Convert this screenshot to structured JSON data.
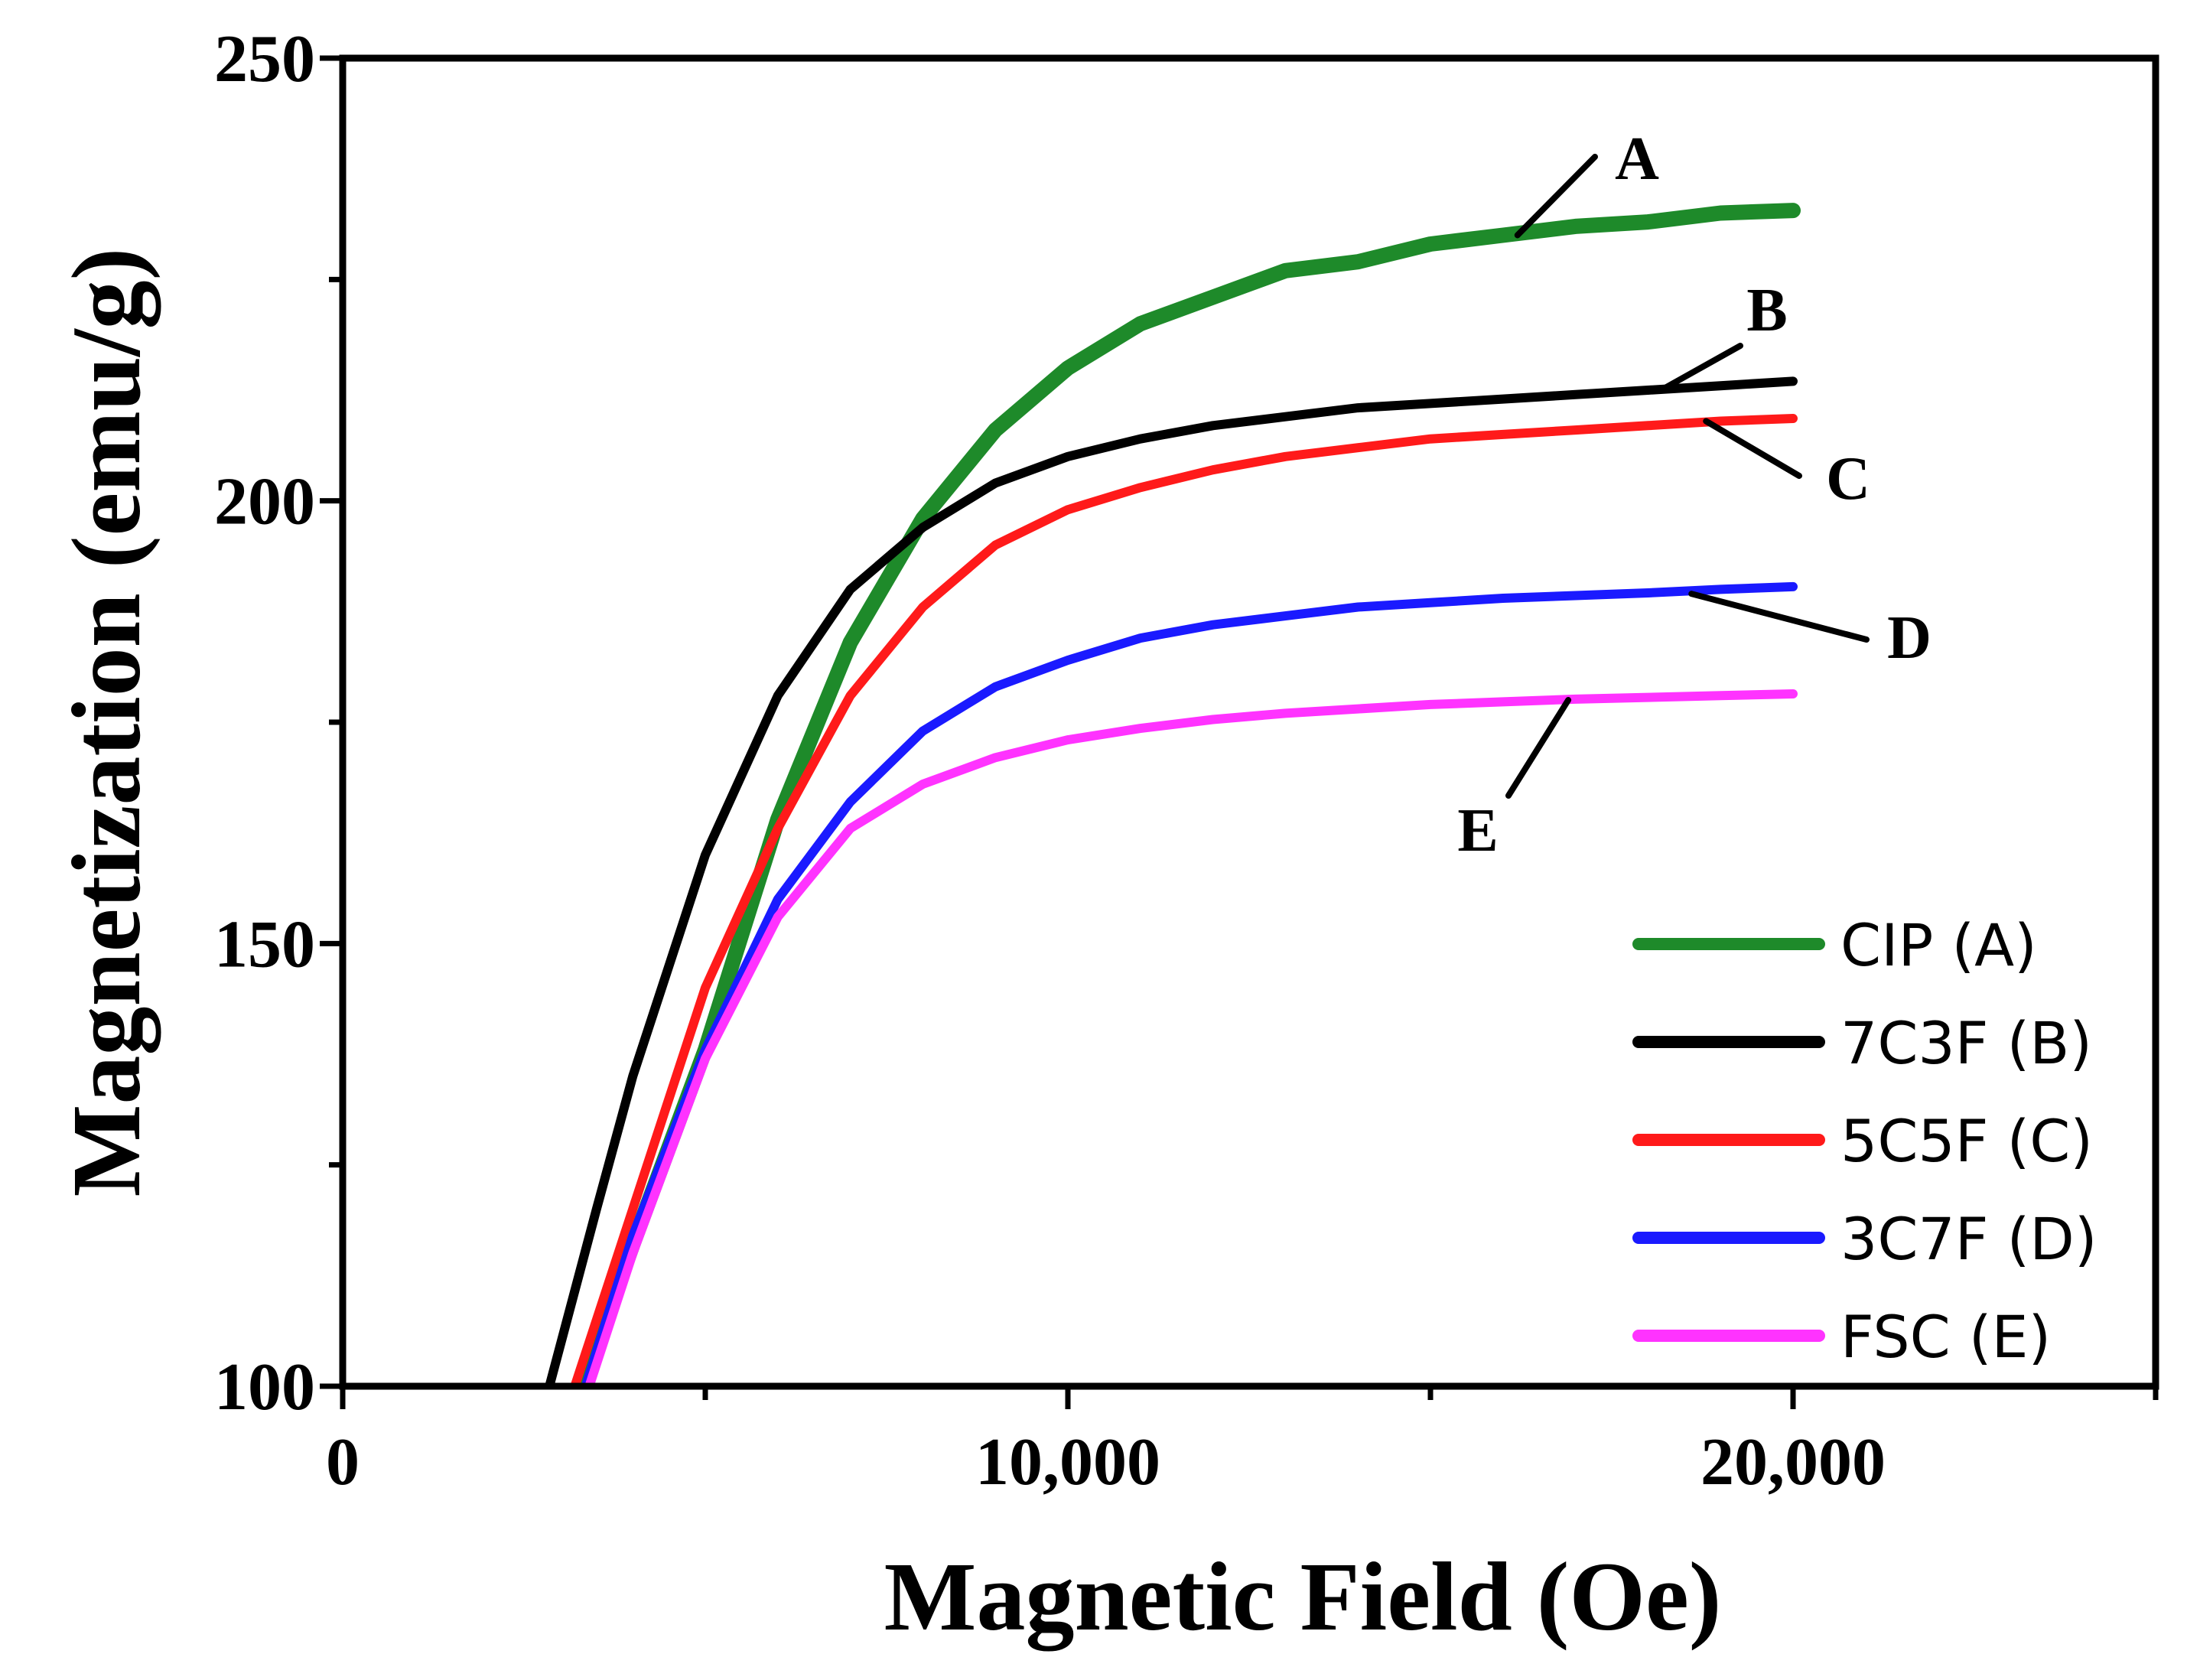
{
  "chart_data": {
    "type": "line",
    "title": "",
    "xlabel": "Magnetic Field (Oe)",
    "ylabel": "Magnetization (emu/g)",
    "xlim": [
      0,
      25000
    ],
    "ylim": [
      100,
      250
    ],
    "x_ticks": [
      {
        "value": 0,
        "label": "0"
      },
      {
        "value": 10000,
        "label": "10,000"
      },
      {
        "value": 20000,
        "label": "20,000"
      }
    ],
    "y_ticks": [
      {
        "value": 100,
        "label": "100"
      },
      {
        "value": 150,
        "label": "150"
      },
      {
        "value": 200,
        "label": "200"
      },
      {
        "value": 250,
        "label": "250"
      }
    ],
    "grid": false,
    "legend_position": "bottom-right",
    "series": [
      {
        "id": "A",
        "name": "CIP (A)",
        "color": "#1e8a2a",
        "tag": "A",
        "points": [
          [
            3300,
            100
          ],
          [
            4000,
            116
          ],
          [
            5000,
            138
          ],
          [
            6000,
            164
          ],
          [
            7000,
            184
          ],
          [
            8000,
            198
          ],
          [
            9000,
            208
          ],
          [
            10000,
            215
          ],
          [
            11000,
            220
          ],
          [
            12000,
            223
          ],
          [
            13000,
            226
          ],
          [
            14000,
            227
          ],
          [
            15000,
            229
          ],
          [
            16000,
            230
          ],
          [
            17000,
            231
          ],
          [
            18000,
            231.5
          ],
          [
            19000,
            232.5
          ],
          [
            20000,
            232.8
          ]
        ]
      },
      {
        "id": "B",
        "name": "7C3F (B)",
        "color": "#000000",
        "tag": "B",
        "points": [
          [
            2850,
            100
          ],
          [
            3500,
            120
          ],
          [
            4000,
            135
          ],
          [
            5000,
            160
          ],
          [
            6000,
            178
          ],
          [
            7000,
            190
          ],
          [
            8000,
            197
          ],
          [
            9000,
            202
          ],
          [
            10000,
            205
          ],
          [
            11000,
            207
          ],
          [
            12000,
            208.5
          ],
          [
            13000,
            209.5
          ],
          [
            14000,
            210.5
          ],
          [
            15000,
            211
          ],
          [
            16000,
            211.5
          ],
          [
            17000,
            212
          ],
          [
            18000,
            212.5
          ],
          [
            19000,
            213
          ],
          [
            20000,
            213.5
          ]
        ]
      },
      {
        "id": "C",
        "name": "5C5F (C)",
        "color": "#ff1a1a",
        "tag": "C",
        "points": [
          [
            3200,
            100
          ],
          [
            4000,
            120
          ],
          [
            5000,
            145
          ],
          [
            6000,
            163
          ],
          [
            7000,
            178
          ],
          [
            8000,
            188
          ],
          [
            9000,
            195
          ],
          [
            10000,
            199
          ],
          [
            11000,
            201.5
          ],
          [
            12000,
            203.5
          ],
          [
            13000,
            205
          ],
          [
            14000,
            206
          ],
          [
            15000,
            207
          ],
          [
            16000,
            207.5
          ],
          [
            17000,
            208
          ],
          [
            18000,
            208.5
          ],
          [
            19000,
            209
          ],
          [
            20000,
            209.3
          ]
        ]
      },
      {
        "id": "D",
        "name": "3C7F (D)",
        "color": "#1a1aff",
        "tag": "D",
        "points": [
          [
            3350,
            100
          ],
          [
            4000,
            117
          ],
          [
            5000,
            138
          ],
          [
            6000,
            155
          ],
          [
            7000,
            166
          ],
          [
            8000,
            174
          ],
          [
            9000,
            179
          ],
          [
            10000,
            182
          ],
          [
            11000,
            184.5
          ],
          [
            12000,
            186
          ],
          [
            13000,
            187
          ],
          [
            14000,
            188
          ],
          [
            15000,
            188.5
          ],
          [
            16000,
            189
          ],
          [
            17000,
            189.3
          ],
          [
            18000,
            189.6
          ],
          [
            19000,
            190
          ],
          [
            20000,
            190.3
          ]
        ]
      },
      {
        "id": "E",
        "name": "FSC (E)",
        "color": "#ff33ff",
        "tag": "E",
        "points": [
          [
            3400,
            100
          ],
          [
            4000,
            115
          ],
          [
            5000,
            137
          ],
          [
            6000,
            153
          ],
          [
            7000,
            163
          ],
          [
            8000,
            168
          ],
          [
            9000,
            171
          ],
          [
            10000,
            173
          ],
          [
            11000,
            174.3
          ],
          [
            12000,
            175.3
          ],
          [
            13000,
            176
          ],
          [
            14000,
            176.5
          ],
          [
            15000,
            177
          ],
          [
            16000,
            177.3
          ],
          [
            17000,
            177.6
          ],
          [
            18000,
            177.8
          ],
          [
            19000,
            178
          ],
          [
            20000,
            178.2
          ]
        ]
      }
    ],
    "annotations": [
      {
        "text": "A",
        "series": "A"
      },
      {
        "text": "B",
        "series": "B"
      },
      {
        "text": "C",
        "series": "C"
      },
      {
        "text": "D",
        "series": "D"
      },
      {
        "text": "E",
        "series": "E"
      }
    ]
  }
}
